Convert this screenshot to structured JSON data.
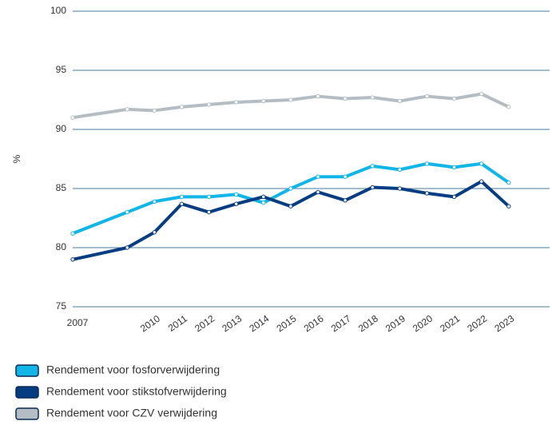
{
  "chart_data": {
    "type": "line",
    "y_label": "%",
    "x": [
      2007,
      2009,
      2010,
      2011,
      2012,
      2013,
      2014,
      2015,
      2016,
      2017,
      2018,
      2019,
      2020,
      2021,
      2022,
      2023
    ],
    "xlim": [
      2007,
      2024.5
    ],
    "xticks": [
      2007,
      2010,
      2011,
      2012,
      2013,
      2014,
      2015,
      2016,
      2017,
      2018,
      2019,
      2020,
      2021,
      2022,
      2023
    ],
    "ylim": [
      75,
      100
    ],
    "yticks": [
      75,
      80,
      85,
      90,
      95,
      100
    ],
    "grid": true,
    "legend": "bottom-left",
    "series": [
      {
        "name": "Rendement voor fosforverwijdering",
        "color": "#12b5e8",
        "values": [
          81.2,
          83.0,
          83.9,
          84.3,
          84.3,
          84.5,
          83.8,
          85.0,
          86.0,
          86.0,
          86.9,
          86.6,
          87.1,
          86.8,
          87.1,
          85.5
        ]
      },
      {
        "name": "Rendement voor stikstofverwijdering",
        "color": "#063d82",
        "values": [
          79.0,
          80.0,
          81.3,
          83.7,
          83.0,
          83.7,
          84.3,
          83.5,
          84.7,
          84.0,
          85.1,
          85.0,
          84.6,
          84.3,
          85.6,
          83.5
        ]
      },
      {
        "name": "Rendement voor CZV verwijdering",
        "color": "#b4bdc3",
        "values": [
          91.0,
          91.7,
          91.6,
          91.9,
          92.1,
          92.3,
          92.4,
          92.5,
          92.8,
          92.6,
          92.7,
          92.4,
          92.8,
          92.6,
          93.0,
          91.9
        ]
      }
    ]
  }
}
